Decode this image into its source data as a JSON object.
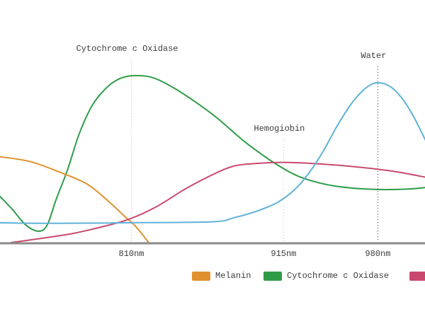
{
  "chart_data": {
    "type": "line",
    "title": "",
    "xlabel": "",
    "ylabel": "",
    "x_ticks": [
      "810nm",
      "915nm",
      "980nm"
    ],
    "x_tick_values_nm": [
      810,
      915,
      980
    ],
    "x_range_nm": [
      719,
      1014
    ],
    "y_range": [
      0,
      1
    ],
    "grid": "vertical dotted guide lines at ticks only",
    "legend_position": "bottom",
    "series": [
      {
        "name": "Melanin",
        "color": "#e0912e",
        "x_nm": [
          719,
          740,
          759,
          779,
          793,
          805,
          813,
          822
        ],
        "y": [
          0.482,
          0.455,
          0.4,
          0.33,
          0.24,
          0.15,
          0.09,
          0.0
        ]
      },
      {
        "name": "Cytochrome c Oxidase",
        "color": "#2e9c47",
        "x_nm": [
          719,
          728,
          737,
          746,
          752,
          758,
          766,
          774,
          783,
          793,
          802,
          812,
          825,
          839,
          854,
          869,
          891,
          917,
          935,
          954,
          979,
          1000,
          1014
        ],
        "y": [
          0.262,
          0.185,
          0.1,
          0.064,
          0.1,
          0.24,
          0.41,
          0.61,
          0.77,
          0.87,
          0.92,
          0.937,
          0.925,
          0.869,
          0.79,
          0.7,
          0.548,
          0.405,
          0.345,
          0.313,
          0.298,
          0.3,
          0.31
        ]
      },
      {
        "name": "Hemoglobin",
        "color": "#c9496e",
        "x_nm": [
          727,
          749,
          769,
          788,
          808,
          827,
          847,
          867,
          881,
          896,
          915,
          935,
          954,
          974,
          993,
          1014
        ],
        "y": [
          0.0,
          0.025,
          0.05,
          0.085,
          0.13,
          0.2,
          0.3,
          0.385,
          0.43,
          0.444,
          0.45,
          0.444,
          0.433,
          0.417,
          0.397,
          0.365
        ]
      },
      {
        "name": "Water",
        "color": "#5fb2d8",
        "x_nm": [
          719,
          760,
          818,
          867,
          881,
          896,
          911,
          923,
          932,
          942,
          952,
          962,
          972,
          980,
          989,
          997,
          1005,
          1014
        ],
        "y": [
          0.111,
          0.108,
          0.112,
          0.117,
          0.14,
          0.175,
          0.226,
          0.3,
          0.385,
          0.508,
          0.655,
          0.782,
          0.869,
          0.897,
          0.873,
          0.806,
          0.702,
          0.555
        ]
      }
    ]
  },
  "annotations": [
    {
      "label": "Cytochrome c Oxidase",
      "tick": "810nm",
      "nm": 810,
      "line_color": "#cccccc"
    },
    {
      "label": "Hemogiobin",
      "tick": "915nm",
      "nm": 915,
      "line_color": "#cccccc"
    },
    {
      "label": "Water",
      "tick": "980nm",
      "nm": 980,
      "line_color": "#4d4d4d"
    }
  ],
  "legend": {
    "items": [
      {
        "label": "Melanin",
        "color": "#e0912e",
        "clipped": false
      },
      {
        "label": "Cytochrome c Oxidase",
        "color": "#2e9c47",
        "clipped": false
      },
      {
        "label": "",
        "color": "#c9496e",
        "clipped": true
      }
    ]
  },
  "colors": {
    "background": "#ffffff",
    "axis_line": "#8a8a8a",
    "text": "#3b3b3b"
  }
}
